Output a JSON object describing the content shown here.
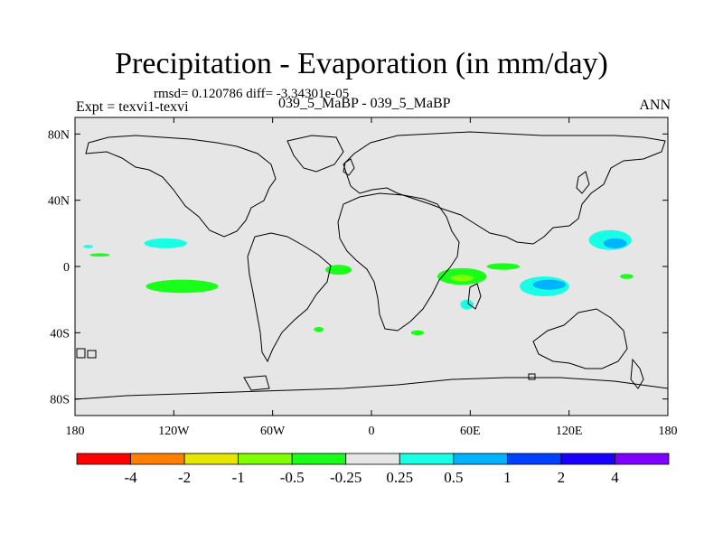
{
  "chart_data": {
    "type": "heatmap",
    "title": "Precipitation - Evaporation (in mm/day)",
    "subtitle": "rmsd= 0.120786 diff= -3.34301e-05",
    "left_label": "Expt = texvi1-texvi",
    "center_label": "039_5_MaBP - 039_5_MaBP",
    "right_label": "ANN",
    "x_ticks": [
      "180",
      "120W",
      "60W",
      "0",
      "60E",
      "120E",
      "180"
    ],
    "x_tick_values": [
      -180,
      -120,
      -60,
      0,
      60,
      120,
      180
    ],
    "y_ticks": [
      "80N",
      "40N",
      "0",
      "40S",
      "80S"
    ],
    "y_tick_values": [
      80,
      40,
      0,
      -40,
      -80
    ],
    "xlim": [
      -180,
      180
    ],
    "ylim": [
      -90,
      90
    ],
    "background_color": "#e6e6e6",
    "colorbar": {
      "colors": [
        "#ff0000",
        "#ff8000",
        "#e6e600",
        "#80ff00",
        "#19ff19",
        "#e6e6e6",
        "#19ffe6",
        "#00b3ff",
        "#0040ff",
        "#1900ff",
        "#8000ff"
      ],
      "labels": [
        "-4",
        "-2",
        "-1",
        "-0.5",
        "-0.25",
        "0.25",
        "0.5",
        "1",
        "2",
        "4"
      ]
    },
    "anomalies": [
      {
        "name": "tropical-atlantic-green",
        "lon": -20,
        "lat": -2,
        "rx": 8,
        "ry": 3,
        "color": "#19ff19"
      },
      {
        "name": "south-pacific-green",
        "lon": -115,
        "lat": -12,
        "rx": 22,
        "ry": 4,
        "color": "#19ff19"
      },
      {
        "name": "north-pacific-cyan",
        "lon": -125,
        "lat": 14,
        "rx": 13,
        "ry": 3,
        "color": "#19ffe6"
      },
      {
        "name": "west-pacific-cyan",
        "lon": 145,
        "lat": 16,
        "rx": 13,
        "ry": 6,
        "color": "#19ffe6"
      },
      {
        "name": "west-pacific-blue",
        "lon": 148,
        "lat": 14,
        "rx": 7,
        "ry": 3,
        "color": "#00b3ff"
      },
      {
        "name": "indian-ocean-green",
        "lon": 55,
        "lat": -6,
        "rx": 15,
        "ry": 5,
        "color": "#19ff19"
      },
      {
        "name": "indian-ocean-core",
        "lon": 55,
        "lat": -7,
        "rx": 7,
        "ry": 2,
        "color": "#80ff00"
      },
      {
        "name": "arabian-green",
        "lon": 80,
        "lat": 0,
        "rx": 10,
        "ry": 2,
        "color": "#19ff19"
      },
      {
        "name": "madagascar-cyan",
        "lon": 58,
        "lat": -23,
        "rx": 4,
        "ry": 3,
        "color": "#19ffe6"
      },
      {
        "name": "maritime-cyan",
        "lon": 105,
        "lat": -12,
        "rx": 15,
        "ry": 6,
        "color": "#19ffe6"
      },
      {
        "name": "maritime-blue",
        "lon": 108,
        "lat": -11,
        "rx": 10,
        "ry": 3,
        "color": "#00b3ff"
      },
      {
        "name": "south-atlantic-green",
        "lon": -32,
        "lat": -38,
        "rx": 3,
        "ry": 1.5,
        "color": "#19ff19"
      },
      {
        "name": "south-africa-green",
        "lon": 28,
        "lat": -40,
        "rx": 4,
        "ry": 1.5,
        "color": "#19ff19"
      },
      {
        "name": "east-pacific-cyan",
        "lon": -172,
        "lat": 12,
        "rx": 3,
        "ry": 1,
        "color": "#19ffe6"
      },
      {
        "name": "indian-ocean-small",
        "lon": 155,
        "lat": -6,
        "rx": 4,
        "ry": 1.5,
        "color": "#19ff19"
      },
      {
        "name": "dateline-green",
        "lon": -165,
        "lat": 7,
        "rx": 6,
        "ry": 1,
        "color": "#19ff19"
      }
    ]
  }
}
